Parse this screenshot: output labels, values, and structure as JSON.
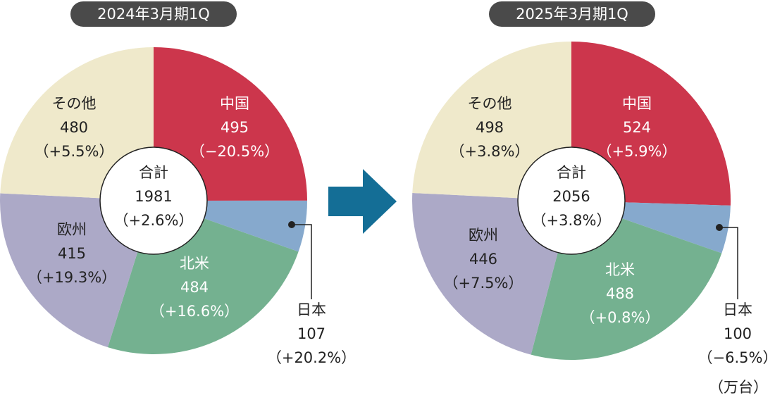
{
  "unit": "（万台）",
  "colors": {
    "中国": "#cc364c",
    "日本": "#86a9cd",
    "北米": "#74b190",
    "欧州": "#aca9c7",
    "その他": "#efe9cb",
    "pill": "#4a4a4a",
    "arrow": "#146e96"
  },
  "chart_data": [
    {
      "type": "pie",
      "title": "2024年3月期1Q",
      "total": {
        "label": "合計",
        "value": 1981,
        "change": "（+2.6%）"
      },
      "slices": [
        {
          "name": "中国",
          "value": 495,
          "change": "（−20.5%）"
        },
        {
          "name": "日本",
          "value": 107,
          "change": "（+20.2%）"
        },
        {
          "name": "北米",
          "value": 484,
          "change": "（+16.6%）"
        },
        {
          "name": "欧州",
          "value": 415,
          "change": "（+19.3%）"
        },
        {
          "name": "その他",
          "value": 480,
          "change": "（+5.5%）"
        }
      ]
    },
    {
      "type": "pie",
      "title": "2025年3月期1Q",
      "total": {
        "label": "合計",
        "value": 2056,
        "change": "（+3.8%）"
      },
      "slices": [
        {
          "name": "中国",
          "value": 524,
          "change": "（+5.9%）"
        },
        {
          "name": "日本",
          "value": 100,
          "change": "（−6.5%）"
        },
        {
          "name": "北米",
          "value": 488,
          "change": "（+0.8%）"
        },
        {
          "name": "欧州",
          "value": 446,
          "change": "（+7.5%）"
        },
        {
          "name": "その他",
          "value": 498,
          "change": "（+3.8%）"
        }
      ]
    }
  ]
}
